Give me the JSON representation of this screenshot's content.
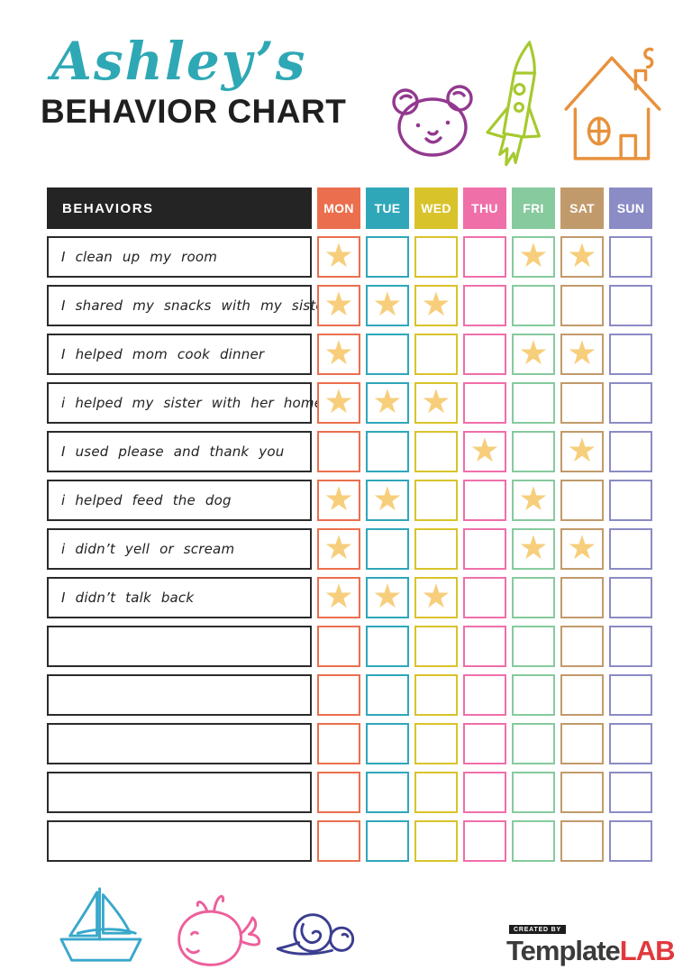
{
  "header": {
    "name": "Ashley’s",
    "title": "BEHAVIOR CHART"
  },
  "colors": {
    "teal": "#2FA8B5",
    "ink": "#1F1F1F",
    "table-black": "#242424",
    "box-border": "#2B2B2B",
    "bear": "#93388F",
    "rocket": "#A6C92F",
    "house": "#E8913C",
    "boat": "#38A8CB",
    "whale": "#ED5F9B",
    "snail": "#3B3E8F",
    "logo-gray": "#3B3B3B",
    "logo-red": "#E0393D"
  },
  "table": {
    "behaviors_header": "BEHAVIORS",
    "days": [
      "MON",
      "TUE",
      "WED",
      "THU",
      "FRI",
      "SAT",
      "SUN"
    ],
    "day_colors": [
      "#EB6F4E",
      "#2FA7B9",
      "#D9C32B",
      "#EF6FA9",
      "#86CA9E",
      "#C19A6B",
      "#8B8BC5"
    ],
    "star_glyph": "★",
    "star_color": "#F7CE7B",
    "rows": [
      {
        "label": "I clean up my room",
        "stars": [
          "MON",
          "FRI",
          "SAT"
        ]
      },
      {
        "label": "I shared my snacks with my sister",
        "stars": [
          "MON",
          "TUE",
          "WED"
        ]
      },
      {
        "label": "I helped mom cook dinner",
        "stars": [
          "MON",
          "FRI",
          "SAT"
        ]
      },
      {
        "label": "i helped my sister with her homework",
        "stars": [
          "MON",
          "TUE",
          "WED"
        ]
      },
      {
        "label": "I used please and thank you",
        "stars": [
          "THU",
          "SAT"
        ]
      },
      {
        "label": "i helped feed the dog",
        "stars": [
          "MON",
          "TUE",
          "FRI"
        ]
      },
      {
        "label": "i didn’t yell or scream",
        "stars": [
          "MON",
          "FRI",
          "SAT"
        ]
      },
      {
        "label": "I didn’t talk back",
        "stars": [
          "MON",
          "TUE",
          "WED"
        ]
      },
      {
        "label": "",
        "stars": []
      },
      {
        "label": "",
        "stars": []
      },
      {
        "label": "",
        "stars": []
      },
      {
        "label": "",
        "stars": []
      },
      {
        "label": "",
        "stars": []
      }
    ]
  },
  "icons": {
    "top": [
      "bear-icon",
      "rocket-icon",
      "house-icon"
    ],
    "bottom": [
      "sailboat-icon",
      "whale-icon",
      "snail-icon"
    ],
    "cell_marker": "star-icon"
  },
  "footer": {
    "created_by": "CREATED BY",
    "brand_template": "Template",
    "brand_lab": "LAB"
  }
}
